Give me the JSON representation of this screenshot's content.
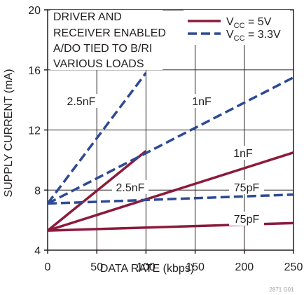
{
  "chart_data": {
    "type": "line",
    "xlabel": "DATA RATE (kbps)",
    "ylabel": "SUPPLY CURRENT (mA)",
    "xlim": [
      0,
      250
    ],
    "ylim": [
      4,
      20
    ],
    "x_ticks": [
      0,
      50,
      100,
      150,
      200,
      250
    ],
    "y_ticks": [
      4,
      8,
      12,
      16,
      20
    ],
    "grid": true,
    "annotation": [
      "DRIVER AND",
      "RECEIVER ENABLED",
      "A/DO TIED TO B/RI",
      "VARIOUS LOADS"
    ],
    "legend_position": "top-right",
    "legend": [
      {
        "series": "vcc5",
        "main": "V",
        "sub": "CC",
        "rest": " = 5V"
      },
      {
        "series": "vcc33",
        "main": "V",
        "sub": "CC",
        "rest": " = 3.3V"
      }
    ],
    "colors": {
      "vcc5": "#8b1a3b",
      "vcc33": "#2e4a94",
      "grid": "#231f20"
    },
    "series": [
      {
        "id": "vcc5-75pf",
        "group": "vcc5",
        "label": "75pF",
        "x": [
          0,
          250
        ],
        "y": [
          5.3,
          5.8
        ]
      },
      {
        "id": "vcc5-1nf",
        "group": "vcc5",
        "label": "1nF",
        "x": [
          0,
          250
        ],
        "y": [
          5.3,
          10.5
        ]
      },
      {
        "id": "vcc5-2p5nf",
        "group": "vcc5",
        "label": "2.5nF",
        "x": [
          0,
          100
        ],
        "y": [
          5.3,
          10.6
        ]
      },
      {
        "id": "vcc33-75pf",
        "group": "vcc33",
        "label": "75pF",
        "x": [
          0,
          250
        ],
        "y": [
          7.1,
          7.7
        ]
      },
      {
        "id": "vcc33-1nf",
        "group": "vcc33",
        "label": "1nF",
        "x": [
          0,
          250
        ],
        "y": [
          7.1,
          15.5
        ]
      },
      {
        "id": "vcc33-2p5nf",
        "group": "vcc33",
        "label": "2.5nF",
        "x": [
          0,
          100
        ],
        "y": [
          7.1,
          15.8
        ]
      }
    ],
    "corner_note": "2871 G01"
  }
}
